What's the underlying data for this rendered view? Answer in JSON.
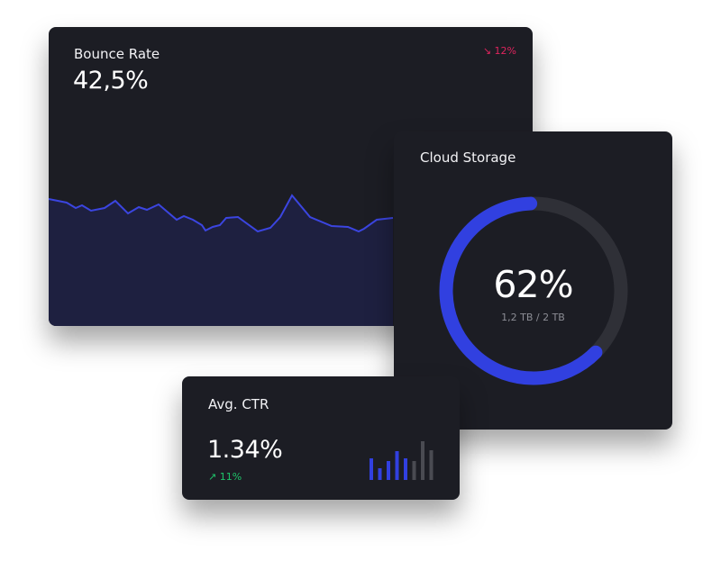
{
  "bounce_rate": {
    "title": "Bounce Rate",
    "value": "42,5%",
    "change": "↘ 12%",
    "change_color": "#e0245e",
    "chart_data": {
      "type": "area",
      "values": [
        67,
        63,
        57,
        60,
        54,
        57,
        65,
        51,
        58,
        55,
        61,
        44,
        48,
        44,
        38,
        32,
        36,
        38,
        46,
        47,
        31,
        35,
        47,
        71,
        47,
        37,
        36,
        31,
        34,
        44,
        46
      ],
      "line_color": "#3b45e0",
      "fill_color": "#1e2040"
    }
  },
  "cloud_storage": {
    "title": "Cloud Storage",
    "percent": "62%",
    "usage": "1,2 TB / 2 TB",
    "fill_fraction": 0.62,
    "accent_color": "#3140e0",
    "track_color": "#2f3037"
  },
  "avg_ctr": {
    "title": "Avg. CTR",
    "value": "1.34%",
    "change": "↗ 11%",
    "change_color": "#1fc46a",
    "chart_data": {
      "type": "bar",
      "values": [
        24,
        13,
        21,
        32,
        24,
        21,
        43,
        33
      ],
      "highlighted_count": 5,
      "colors": {
        "highlight": "#3140e0",
        "muted": "#4a4b52"
      }
    }
  }
}
